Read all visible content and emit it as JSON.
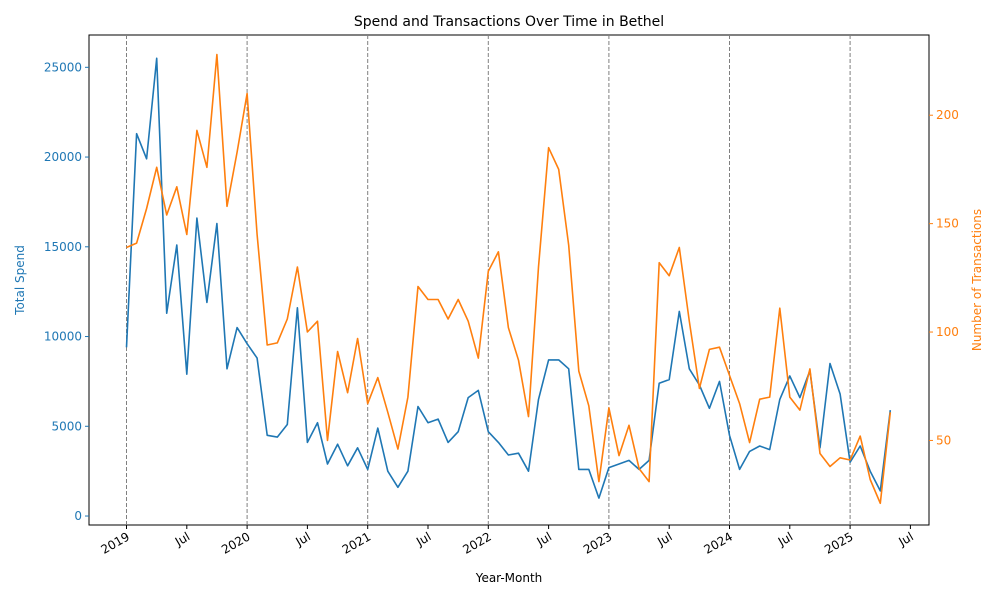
{
  "chart_data": {
    "type": "line",
    "title": "Spend and Transactions Over Time in Bethel",
    "xlabel": "Year-Month",
    "ylabel_left": "Total Spend",
    "ylabel_right": "Number of Transactions",
    "colors": {
      "spend": "#1f77b4",
      "transactions": "#ff7f0e",
      "year_lines": "#808080"
    },
    "x_start": "2019-01",
    "x_end": "2025-05",
    "x_tick_labels": [
      "2019",
      "Jul",
      "2020",
      "Jul",
      "2021",
      "Jul",
      "2022",
      "Jul",
      "2023",
      "Jul",
      "2024",
      "Jul",
      "2025",
      "Jul"
    ],
    "year_boundaries": [
      "2019-01",
      "2020-01",
      "2021-01",
      "2022-01",
      "2023-01",
      "2024-01",
      "2025-01"
    ],
    "y_left": {
      "range": [
        -500,
        26800
      ],
      "ticks": [
        0,
        5000,
        10000,
        15000,
        20000,
        25000
      ]
    },
    "y_right": {
      "range": [
        11,
        237
      ],
      "ticks": [
        50,
        100,
        150,
        200
      ]
    },
    "series": [
      {
        "name": "Total Spend",
        "axis": "left",
        "values": [
          9400,
          21300,
          19900,
          25500,
          11300,
          15100,
          7900,
          16600,
          11900,
          16300,
          8200,
          10500,
          9600,
          8800,
          4500,
          4400,
          5100,
          11600,
          4100,
          5200,
          2900,
          4000,
          2800,
          3800,
          2600,
          4900,
          2500,
          1600,
          2500,
          6100,
          5200,
          5400,
          4100,
          4700,
          6600,
          7000,
          4700,
          4100,
          3400,
          3500,
          2500,
          6500,
          8700,
          8700,
          8200,
          2600,
          2600,
          1000,
          2700,
          2900,
          3100,
          2600,
          3100,
          7400,
          7600,
          11400,
          8200,
          7300,
          6000,
          7500,
          4500,
          2600,
          3600,
          3900,
          3700,
          6500,
          7800,
          6600,
          8100,
          3800,
          8500,
          6800,
          3000,
          3900,
          2500,
          1400,
          5900
        ]
      },
      {
        "name": "Number of Transactions",
        "axis": "right",
        "values": [
          139,
          141,
          157,
          176,
          154,
          167,
          145,
          193,
          176,
          228,
          158,
          183,
          210,
          145,
          94,
          95,
          106,
          130,
          100,
          105,
          50,
          91,
          72,
          97,
          67,
          79,
          63,
          46,
          70,
          121,
          115,
          115,
          106,
          115,
          105,
          88,
          128,
          137,
          102,
          87,
          61,
          130,
          185,
          175,
          140,
          82,
          66,
          31,
          65,
          43,
          57,
          37,
          31,
          132,
          126,
          139,
          105,
          74,
          92,
          93,
          80,
          67,
          49,
          69,
          70,
          111,
          70,
          64,
          83,
          44,
          38,
          42,
          41,
          52,
          32,
          21,
          63
        ]
      }
    ]
  }
}
